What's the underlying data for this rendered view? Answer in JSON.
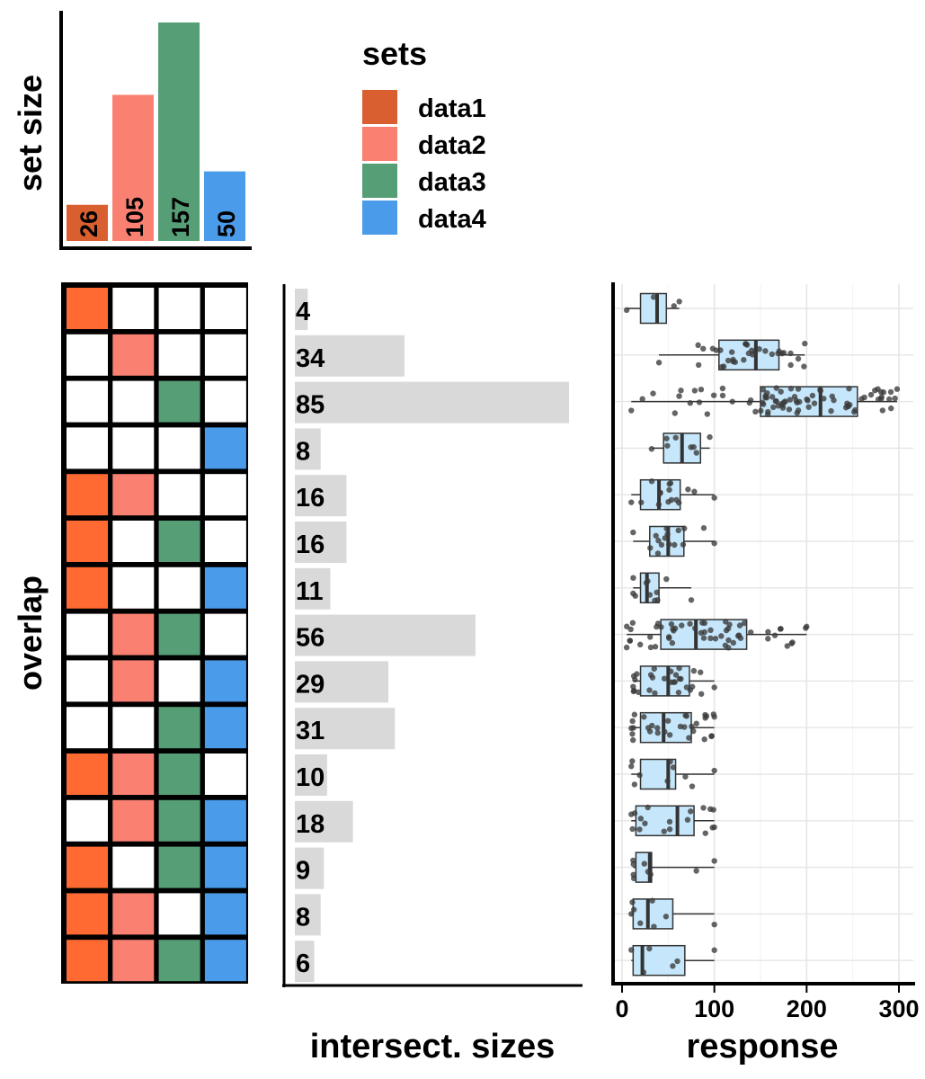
{
  "chart_data": [
    {
      "type": "bar",
      "ylabel": "set size",
      "categories": [
        "data1",
        "data2",
        "data3",
        "data4"
      ],
      "values": [
        26,
        105,
        157,
        50
      ],
      "colors": [
        "#D95F31",
        "#FA8072",
        "#569E76",
        "#4A9CEB"
      ],
      "ylim": [
        0,
        157
      ],
      "legend": {
        "title": "sets",
        "entries": [
          "data1",
          "data2",
          "data3",
          "data4"
        ],
        "placement": "top-right"
      }
    },
    {
      "type": "table",
      "ylabel": "overlap",
      "sets": [
        "data1",
        "data2",
        "data3",
        "data4"
      ],
      "cell_colors": [
        "#FF6A33",
        "#FA8072",
        "#569E76",
        "#4A9CEB"
      ],
      "rows": [
        [
          1,
          0,
          0,
          0
        ],
        [
          0,
          1,
          0,
          0
        ],
        [
          0,
          0,
          1,
          0
        ],
        [
          0,
          0,
          0,
          1
        ],
        [
          1,
          1,
          0,
          0
        ],
        [
          1,
          0,
          1,
          0
        ],
        [
          1,
          0,
          0,
          1
        ],
        [
          0,
          1,
          1,
          0
        ],
        [
          0,
          1,
          0,
          1
        ],
        [
          0,
          0,
          1,
          1
        ],
        [
          1,
          1,
          1,
          0
        ],
        [
          0,
          1,
          1,
          1
        ],
        [
          1,
          0,
          1,
          1
        ],
        [
          1,
          1,
          0,
          1
        ],
        [
          1,
          1,
          1,
          1
        ]
      ]
    },
    {
      "type": "bar",
      "orientation": "horizontal",
      "xlabel": "intersect. sizes",
      "values": [
        4,
        34,
        85,
        8,
        16,
        16,
        11,
        56,
        29,
        31,
        10,
        18,
        9,
        8,
        6
      ],
      "bar_color": "#D9D9D9",
      "xlim": [
        0,
        85
      ]
    },
    {
      "type": "box",
      "xlabel": "response",
      "xlim": [
        0,
        300
      ],
      "xticks": [
        0,
        100,
        200,
        300
      ],
      "grid": true,
      "box_color": "#C6E7FB",
      "boxes": [
        {
          "min": 5,
          "q1": 20,
          "median": 38,
          "q3": 48,
          "max": 62
        },
        {
          "min": 40,
          "q1": 105,
          "median": 145,
          "q3": 170,
          "max": 198
        },
        {
          "min": 10,
          "q1": 150,
          "median": 215,
          "q3": 255,
          "max": 298
        },
        {
          "min": 32,
          "q1": 45,
          "median": 65,
          "q3": 85,
          "max": 95
        },
        {
          "min": 10,
          "q1": 20,
          "median": 40,
          "q3": 63,
          "max": 100
        },
        {
          "min": 12,
          "q1": 30,
          "median": 50,
          "q3": 67,
          "max": 100
        },
        {
          "min": 12,
          "q1": 20,
          "median": 27,
          "q3": 40,
          "max": 75
        },
        {
          "min": 5,
          "q1": 42,
          "median": 80,
          "q3": 135,
          "max": 200
        },
        {
          "min": 12,
          "q1": 20,
          "median": 50,
          "q3": 73,
          "max": 100
        },
        {
          "min": 10,
          "q1": 20,
          "median": 45,
          "q3": 75,
          "max": 100
        },
        {
          "min": 10,
          "q1": 20,
          "median": 50,
          "q3": 58,
          "max": 100
        },
        {
          "min": 10,
          "q1": 15,
          "median": 60,
          "q3": 78,
          "max": 100
        },
        {
          "min": 12,
          "q1": 15,
          "median": 30,
          "q3": 32,
          "max": 100
        },
        {
          "min": 10,
          "q1": 12,
          "median": 28,
          "q3": 55,
          "max": 100
        },
        {
          "min": 10,
          "q1": 12,
          "median": 22,
          "q3": 68,
          "max": 100
        }
      ]
    }
  ]
}
